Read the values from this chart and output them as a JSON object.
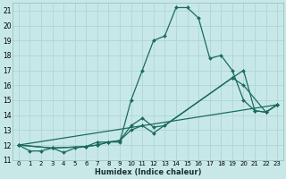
{
  "title": "",
  "xlabel": "Humidex (Indice chaleur)",
  "ylabel": "",
  "bg_color": "#c8e8e8",
  "line_color": "#1a6b5e",
  "grid_color": "#b0d8d8",
  "xlim": [
    -0.5,
    23.5
  ],
  "ylim": [
    11,
    21.5
  ],
  "yticks": [
    11,
    12,
    13,
    14,
    15,
    16,
    17,
    18,
    19,
    20,
    21
  ],
  "xticks": [
    0,
    1,
    2,
    3,
    4,
    5,
    6,
    7,
    8,
    9,
    10,
    11,
    12,
    13,
    14,
    15,
    16,
    17,
    18,
    19,
    20,
    21,
    22,
    23
  ],
  "lines": [
    {
      "x": [
        0,
        1,
        2,
        3,
        4,
        5,
        6,
        7,
        8,
        9,
        10,
        11,
        12,
        13,
        14,
        15,
        16,
        17,
        18,
        19,
        20,
        21,
        22,
        23
      ],
      "y": [
        12.0,
        11.6,
        11.6,
        11.8,
        11.5,
        11.8,
        11.9,
        12.2,
        12.2,
        12.2,
        15.0,
        17.0,
        19.0,
        19.3,
        21.2,
        21.2,
        20.5,
        17.8,
        18.0,
        17.0,
        15.0,
        14.3,
        14.2,
        14.7
      ]
    },
    {
      "x": [
        0,
        3,
        6,
        7,
        8,
        9,
        10,
        11,
        12,
        13,
        19,
        20,
        21,
        22,
        23
      ],
      "y": [
        12.0,
        11.8,
        11.9,
        12.0,
        12.2,
        12.3,
        13.3,
        13.8,
        13.2,
        13.3,
        16.5,
        17.0,
        14.3,
        14.2,
        14.7
      ]
    },
    {
      "x": [
        0,
        3,
        6,
        7,
        8,
        9,
        10,
        11,
        12,
        19,
        20,
        22,
        23
      ],
      "y": [
        12.0,
        11.8,
        11.9,
        12.0,
        12.2,
        12.3,
        13.0,
        13.3,
        12.8,
        16.5,
        16.0,
        14.2,
        14.7
      ]
    },
    {
      "x": [
        0,
        23
      ],
      "y": [
        12.0,
        14.7
      ]
    }
  ]
}
